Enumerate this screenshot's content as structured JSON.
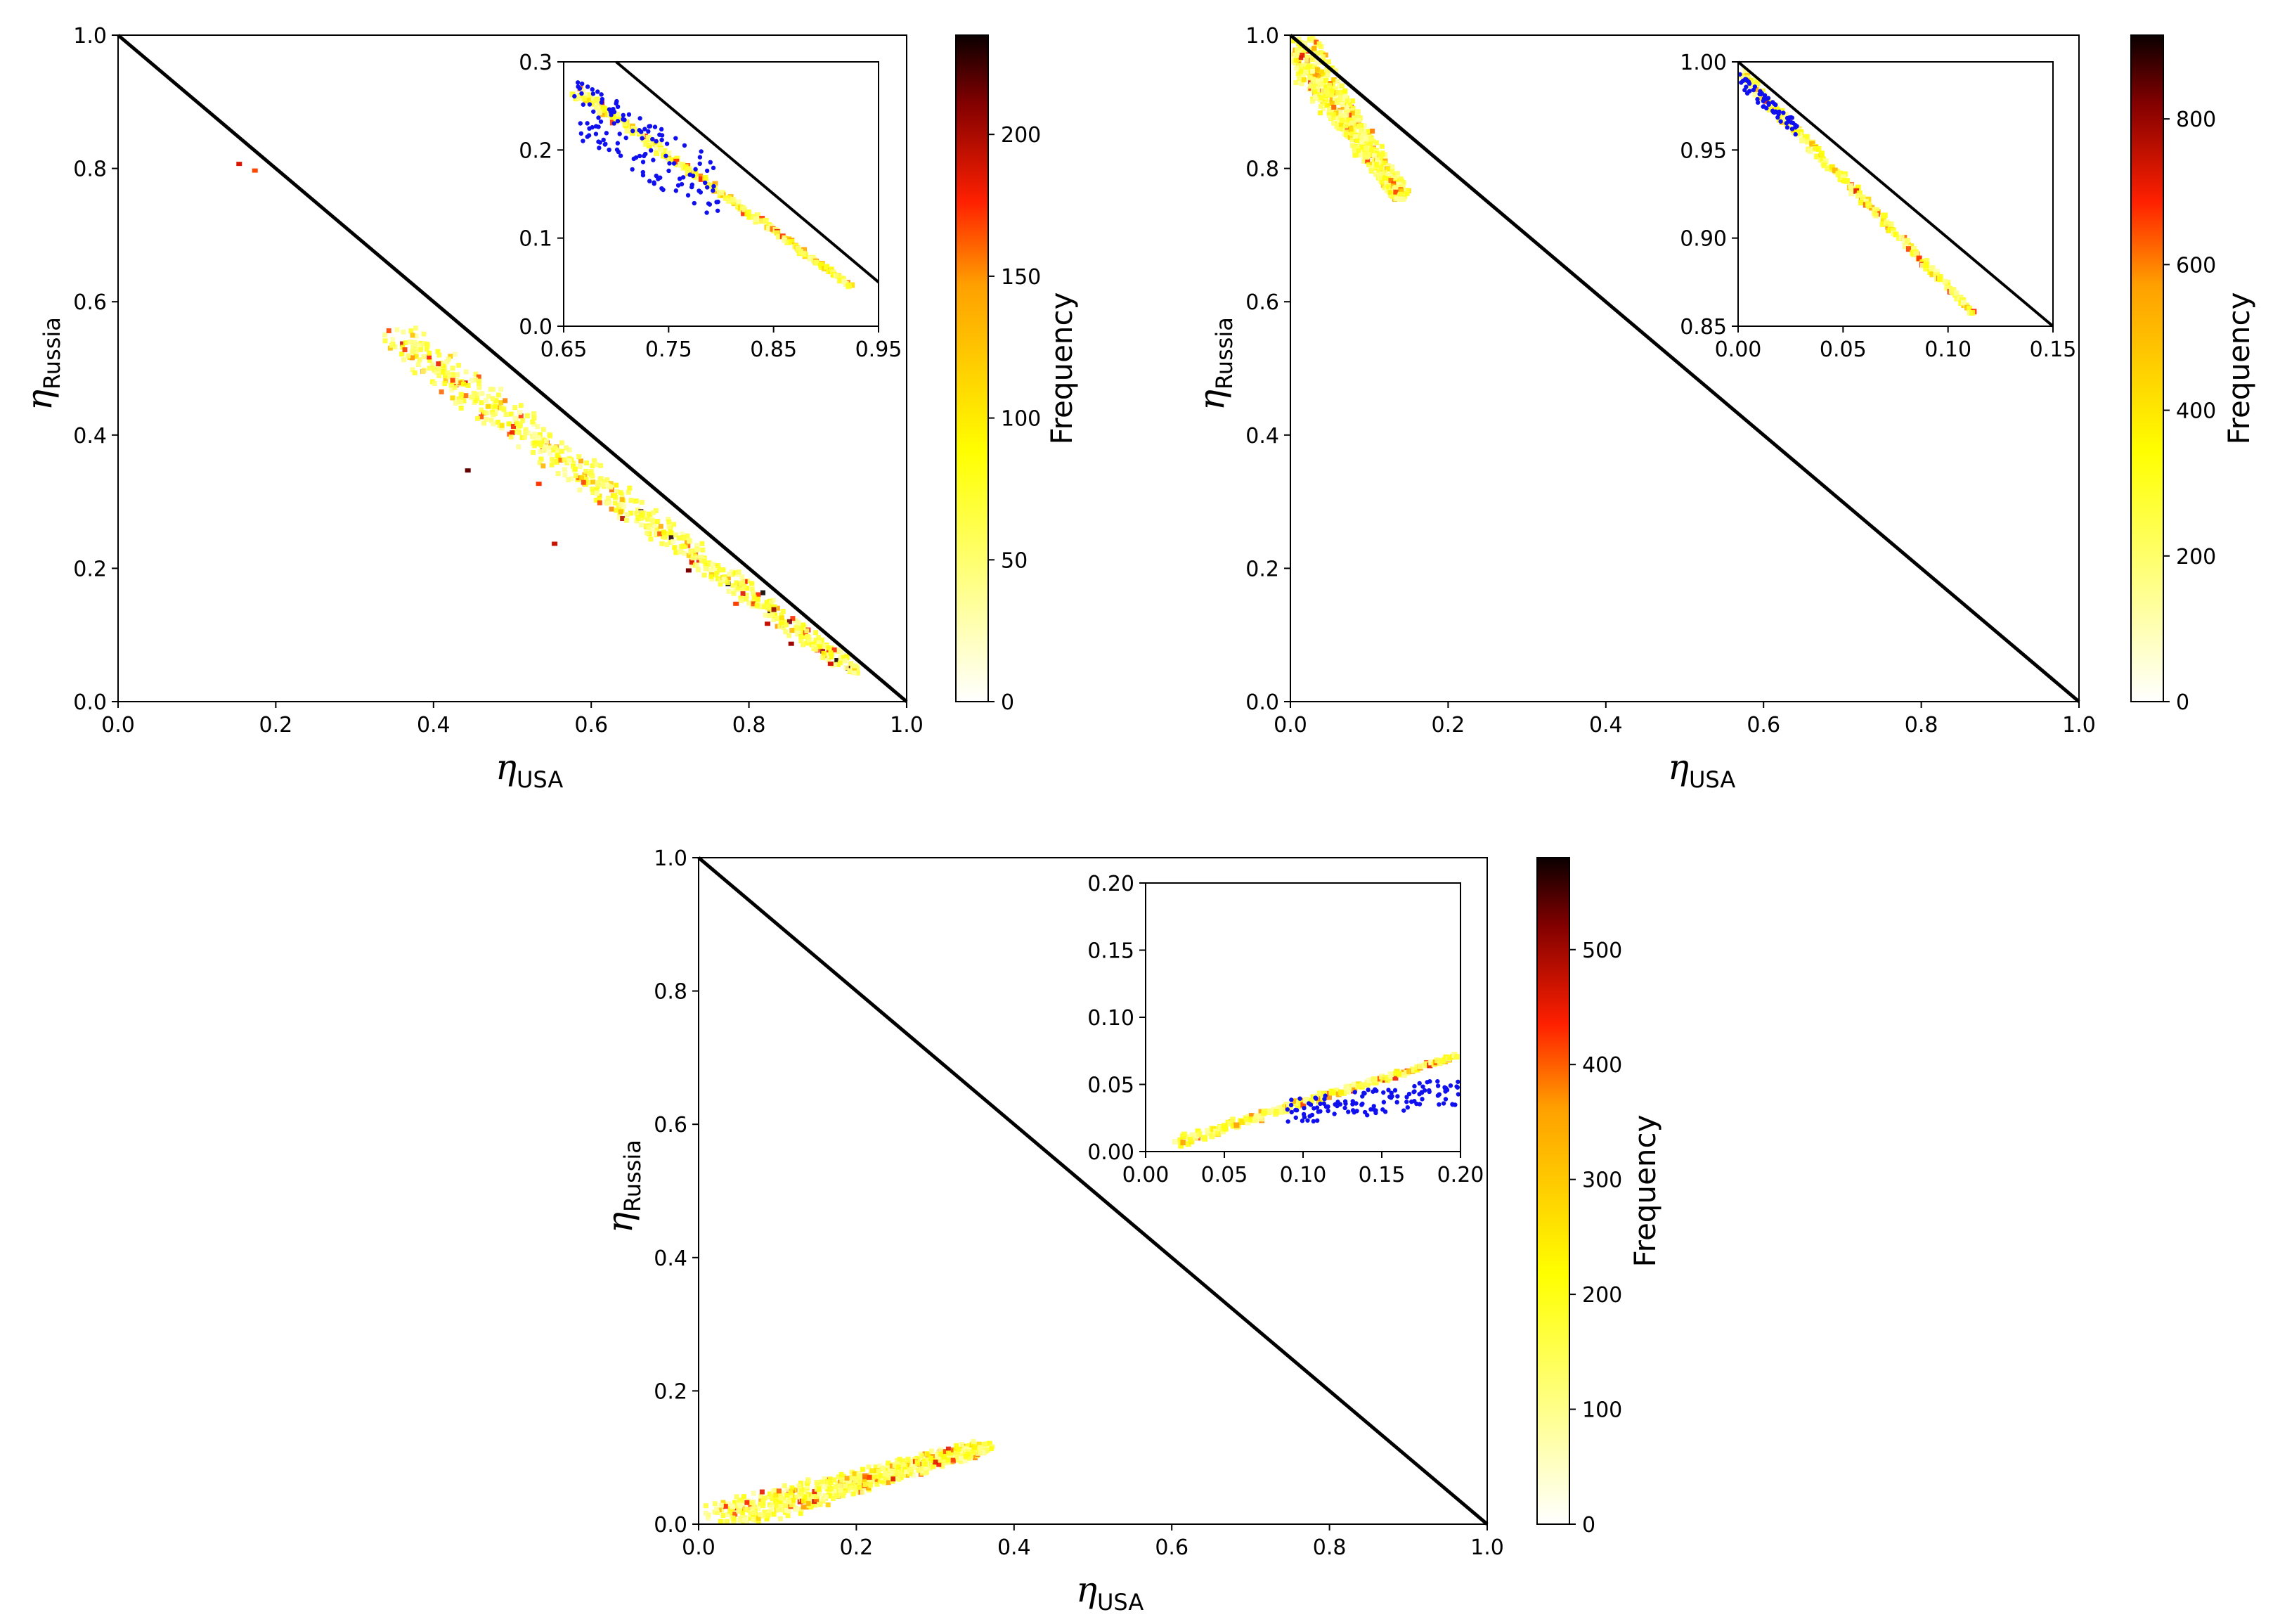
{
  "figure": {
    "description": "Three 2D histograms of eta_Russia vs eta_USA with insets",
    "panels": [
      {
        "id": "top-left",
        "chart_data": {
          "type": "heatmap",
          "xlabel": "η",
          "xlabel_sub": "USA",
          "ylabel": "η",
          "ylabel_sub": "Russia",
          "xlim": [
            0.0,
            1.0
          ],
          "ylim": [
            0.0,
            1.0
          ],
          "xticks": [
            "0.0",
            "0.2",
            "0.4",
            "0.6",
            "0.8",
            "1.0"
          ],
          "yticks": [
            "0.0",
            "0.2",
            "0.4",
            "0.6",
            "0.8",
            "1.0"
          ],
          "reference_line": [
            [
              0,
              1
            ],
            [
              1,
              0
            ]
          ],
          "colorbar": {
            "label": "Frequency",
            "vmax": 235,
            "ticks": [
              0,
              50,
              100,
              150,
              200
            ]
          },
          "density_band": {
            "from": [
              0.35,
              0.55
            ],
            "to": [
              0.93,
              0.05
            ],
            "peak_from": 0.65
          },
          "hot_cells": [
            [
              0.15,
              0.81
            ],
            [
              0.17,
              0.8
            ],
            [
              0.44,
              0.35
            ],
            [
              0.53,
              0.33
            ],
            [
              0.55,
              0.24
            ],
            [
              0.72,
              0.2
            ],
            [
              0.78,
              0.15
            ],
            [
              0.82,
              0.12
            ],
            [
              0.85,
              0.09
            ],
            [
              0.9,
              0.06
            ]
          ],
          "inset": {
            "xlim": [
              0.65,
              0.95
            ],
            "ylim": [
              0.0,
              0.3
            ],
            "xticks": [
              "0.65",
              "0.75",
              "0.85",
              "0.95"
            ],
            "yticks": [
              "0.0",
              "0.1",
              "0.2",
              "0.3"
            ],
            "density_band": {
              "from": [
                0.66,
                0.27
              ],
              "to": [
                0.92,
                0.05
              ]
            },
            "scatter_region": {
              "x": [
                0.66,
                0.8
              ],
              "y_center_from": 0.25,
              "y_center_to": 0.15,
              "spread": 0.035,
              "count": 130
            }
          }
        }
      },
      {
        "id": "top-right",
        "chart_data": {
          "type": "heatmap",
          "xlabel": "η",
          "xlabel_sub": "USA",
          "ylabel": "η",
          "ylabel_sub": "Russia",
          "xlim": [
            0.0,
            1.0
          ],
          "ylim": [
            0.0,
            1.0
          ],
          "xticks": [
            "0.0",
            "0.2",
            "0.4",
            "0.6",
            "0.8",
            "1.0"
          ],
          "yticks": [
            "0.0",
            "0.2",
            "0.4",
            "0.6",
            "0.8",
            "1.0"
          ],
          "reference_line": [
            [
              0,
              1
            ],
            [
              1,
              0
            ]
          ],
          "colorbar": {
            "label": "Frequency",
            "vmax": 915,
            "ticks": [
              0,
              200,
              400,
              600,
              800
            ]
          },
          "density_band": {
            "from": [
              0.0,
              0.99
            ],
            "to": [
              0.14,
              0.76
            ]
          },
          "inset": {
            "xlim": [
              0.0,
              0.15
            ],
            "ylim": [
              0.85,
              1.0
            ],
            "xticks": [
              "0.00",
              "0.05",
              "0.10",
              "0.15"
            ],
            "yticks": [
              "0.85",
              "0.90",
              "0.95",
              "1.00"
            ],
            "density_band": {
              "from": [
                0.0,
                0.995
              ],
              "to": [
                0.11,
                0.86
              ]
            },
            "scatter_region": {
              "x": [
                0.0,
                0.03
              ],
              "y_center_from": 0.99,
              "y_center_to": 0.96,
              "spread": 0.004,
              "count": 60
            }
          }
        }
      },
      {
        "id": "bottom",
        "chart_data": {
          "type": "heatmap",
          "xlabel": "η",
          "xlabel_sub": "USA",
          "ylabel": "η",
          "ylabel_sub": "Russia",
          "xlim": [
            0.0,
            1.0
          ],
          "ylim": [
            0.0,
            1.0
          ],
          "xticks": [
            "0.0",
            "0.2",
            "0.4",
            "0.6",
            "0.8",
            "1.0"
          ],
          "yticks": [
            "0.0",
            "0.2",
            "0.4",
            "0.6",
            "0.8",
            "1.0"
          ],
          "reference_line": [
            [
              0,
              1
            ],
            [
              1,
              0
            ]
          ],
          "colorbar": {
            "label": "Frequency",
            "vmax": 580,
            "ticks": [
              0,
              100,
              200,
              300,
              400,
              500
            ]
          },
          "density_band": {
            "from": [
              0.02,
              0.01
            ],
            "to": [
              0.36,
              0.12
            ]
          },
          "inset": {
            "xlim": [
              0.0,
              0.2
            ],
            "ylim": [
              0.0,
              0.2
            ],
            "xticks": [
              "0.00",
              "0.05",
              "0.10",
              "0.15",
              "0.20"
            ],
            "yticks": [
              "0.00",
              "0.05",
              "0.10",
              "0.15",
              "0.20"
            ],
            "density_band": {
              "from": [
                0.02,
                0.01
              ],
              "to": [
                0.2,
                0.075
              ]
            },
            "scatter_region": {
              "x": [
                0.09,
                0.2
              ],
              "y_center_from": 0.03,
              "y_center_to": 0.045,
              "spread": 0.01,
              "count": 120
            }
          }
        }
      }
    ]
  }
}
